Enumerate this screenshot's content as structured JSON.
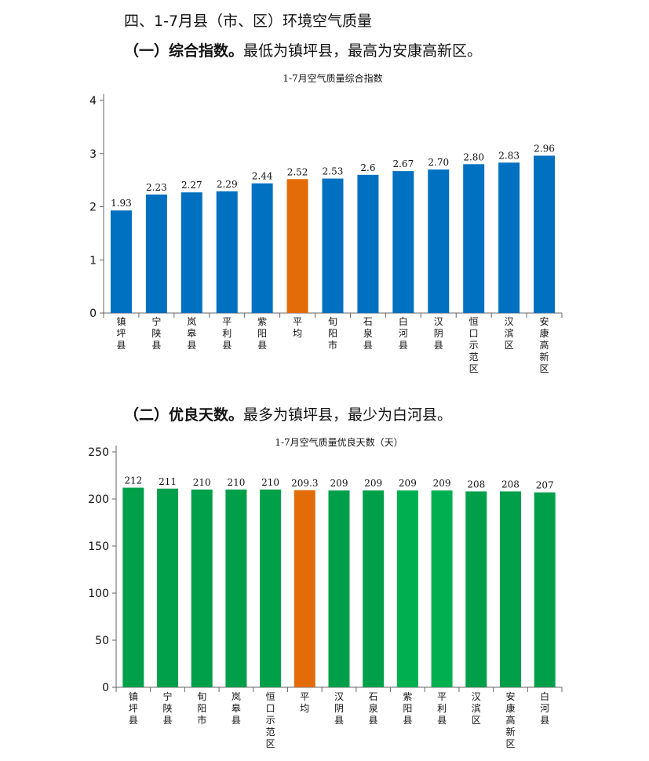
{
  "heading": "四、1-7月县（市、区）环境空气质量",
  "section1": {
    "label": "（一）综合指数。",
    "text": "最低为镇坪县，最高为安康高新区。"
  },
  "section2": {
    "label": "（二）优良天数。",
    "text": "最多为镇坪县，最少为白河县。"
  },
  "colors": {
    "bar_blue": "#0070C0",
    "bar_orange": "#E36C09",
    "bar_green_dark": "#00A04A",
    "bar_green_light": "#00B050"
  },
  "chart_data": [
    {
      "type": "bar",
      "title": "1-7月空气质量综合指数",
      "categories": [
        "镇坪县",
        "宁陕县",
        "岚皋县",
        "平利县",
        "紫阳县",
        "平均",
        "旬阳市",
        "石泉县",
        "白河县",
        "汉阴县",
        "恒口示范区",
        "汉滨区",
        "安康高新区"
      ],
      "values": [
        1.93,
        2.23,
        2.27,
        2.29,
        2.44,
        2.52,
        2.53,
        2.6,
        2.67,
        2.7,
        2.8,
        2.83,
        2.96
      ],
      "value_labels": [
        "1.93",
        "2.23",
        "2.27",
        "2.29",
        "2.44",
        "2.52",
        "2.53",
        "2.6",
        "2.67",
        "2.70",
        "2.80",
        "2.83",
        "2.96"
      ],
      "highlight": "平均",
      "yticks": [
        "0",
        "1",
        "2",
        "3",
        "4"
      ],
      "ylim": [
        0,
        4
      ],
      "grid": false,
      "legend": "none"
    },
    {
      "type": "bar",
      "title": "1-7月空气质量优良天数（天）",
      "categories": [
        "镇坪县",
        "宁陕县",
        "旬阳市",
        "岚皋县",
        "恒口示范区",
        "平均",
        "汉阴县",
        "石泉县",
        "紫阳县",
        "平利县",
        "汉滨区",
        "安康高新区",
        "白河县"
      ],
      "values": [
        212,
        211,
        210,
        210,
        210,
        209.3,
        209,
        209,
        209,
        209,
        208,
        208,
        207
      ],
      "value_labels": [
        "212",
        "211",
        "210",
        "210",
        "210",
        "209.3",
        "209",
        "209",
        "209",
        "209",
        "208",
        "208",
        "207"
      ],
      "highlight": "平均",
      "yticks": [
        "0",
        "50",
        "100",
        "150",
        "200",
        "250"
      ],
      "ylim": [
        0,
        250
      ],
      "grid": false,
      "legend": "none"
    }
  ]
}
